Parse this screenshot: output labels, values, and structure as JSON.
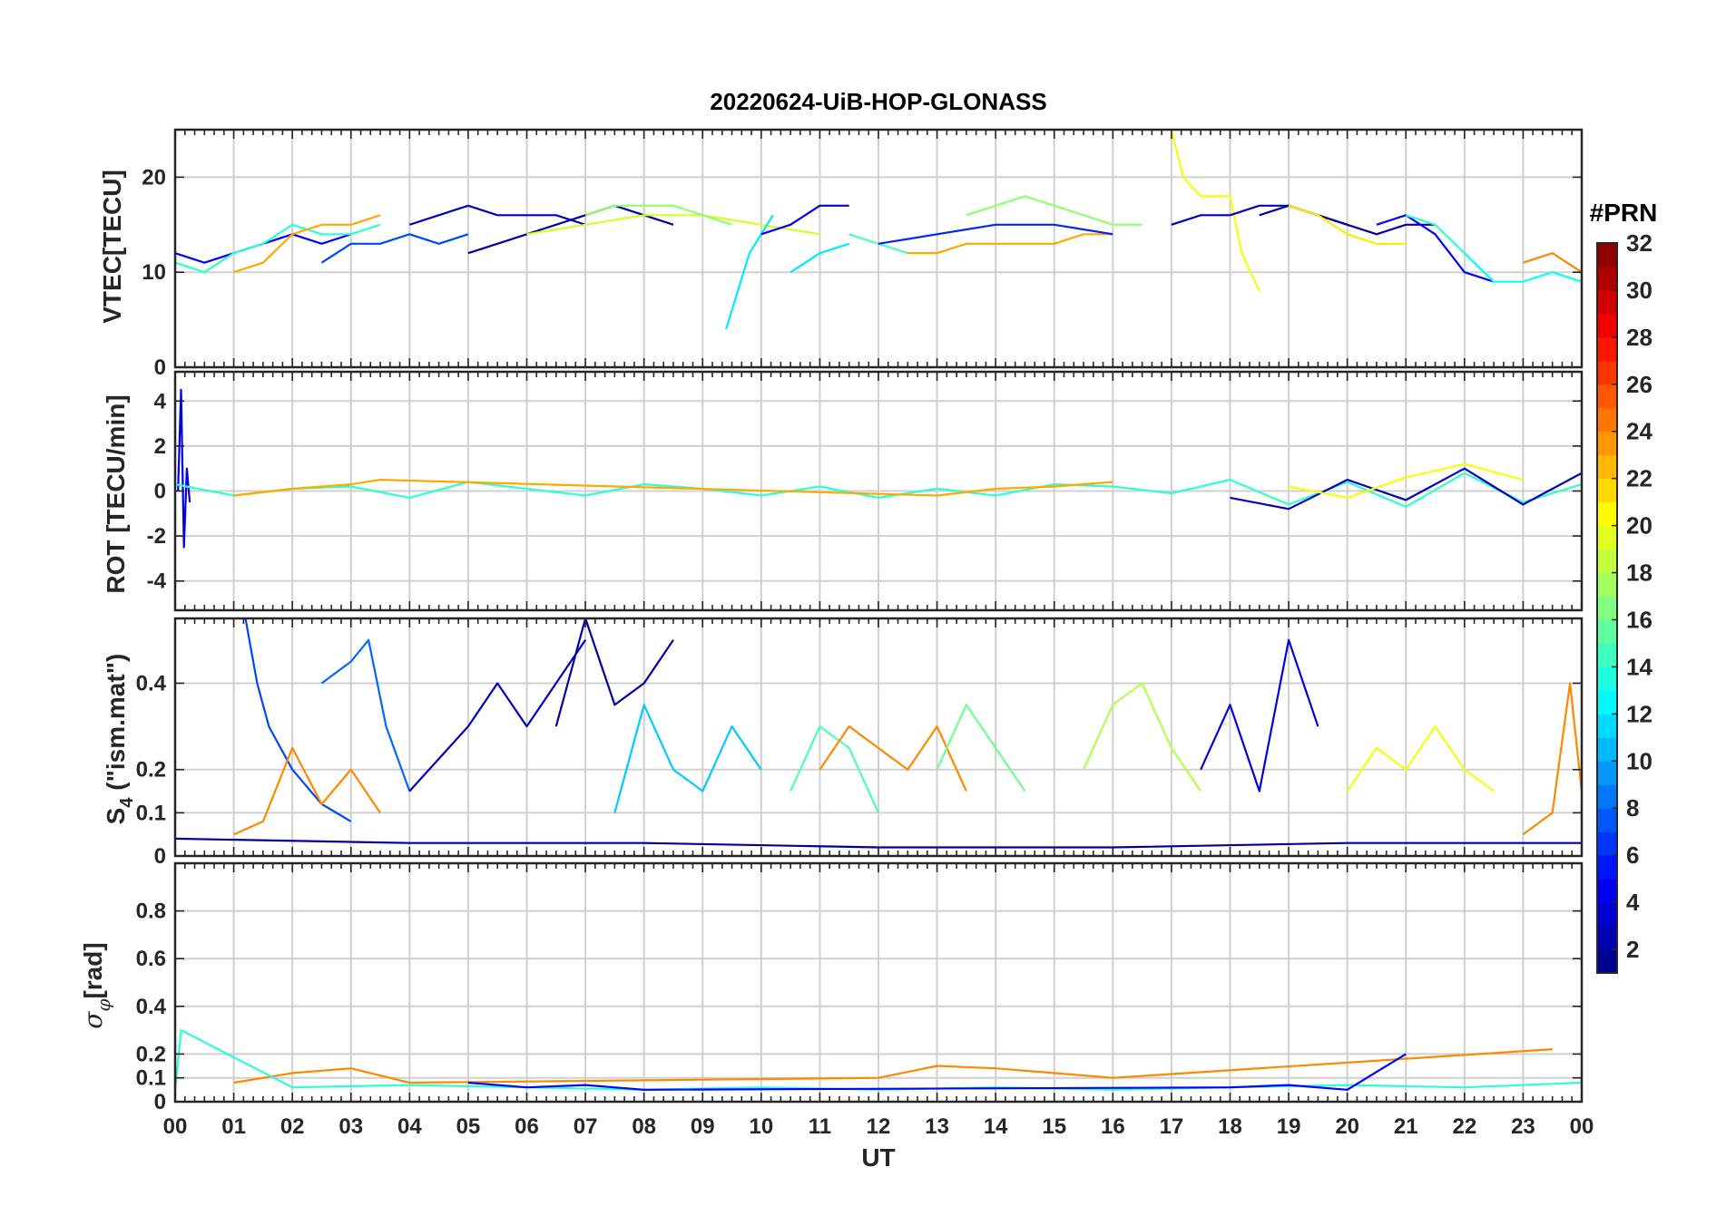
{
  "chart_data": [
    {
      "type": "line",
      "title": "20220624-UiB-HOP-GLONASS",
      "ylabel": "VTEC[TECU]",
      "xlim": [
        0,
        24
      ],
      "ylim": [
        0,
        25
      ],
      "yticks": [
        0,
        10,
        20
      ],
      "grid": true,
      "series_count_note": "",
      "series": [
        {
          "prn": 5,
          "x": [
            0,
            0.5,
            1,
            1.5,
            2,
            2.5,
            3
          ],
          "y": [
            12,
            11,
            12,
            13,
            14,
            13,
            14
          ]
        },
        {
          "prn": 14,
          "x": [
            0,
            0.5,
            1,
            1.5,
            2,
            2.5,
            3,
            3.5
          ],
          "y": [
            11,
            10,
            12,
            13,
            15,
            14,
            14,
            15
          ]
        },
        {
          "prn": 23,
          "x": [
            1,
            1.5,
            2,
            2.5,
            3,
            3.5
          ],
          "y": [
            10,
            11,
            14,
            15,
            15,
            16
          ]
        },
        {
          "prn": 7,
          "x": [
            2.5,
            3,
            3.5,
            4,
            4.5,
            5
          ],
          "y": [
            11,
            13,
            13,
            14,
            13,
            14
          ]
        },
        {
          "prn": 3,
          "x": [
            4,
            4.5,
            5,
            5.5,
            6,
            6.5,
            7
          ],
          "y": [
            15,
            16,
            17,
            16,
            16,
            16,
            15
          ]
        },
        {
          "prn": 2,
          "x": [
            5,
            5.5,
            6,
            6.5,
            7,
            7.5,
            8,
            8.5
          ],
          "y": [
            12,
            13,
            14,
            15,
            16,
            17,
            16,
            15
          ]
        },
        {
          "prn": 19,
          "x": [
            6,
            7,
            8,
            9,
            10,
            11
          ],
          "y": [
            14,
            15,
            16,
            16,
            15,
            14
          ]
        },
        {
          "prn": 17,
          "x": [
            7,
            7.5,
            8,
            8.5,
            9,
            9.5
          ],
          "y": [
            16,
            17,
            17,
            17,
            16,
            15
          ]
        },
        {
          "prn": 12,
          "x": [
            9.4,
            9.6,
            9.8,
            10,
            10.2
          ],
          "y": [
            4,
            8,
            12,
            14,
            16
          ]
        },
        {
          "prn": 12,
          "x": [
            10.5,
            11,
            11.5
          ],
          "y": [
            10,
            12,
            13
          ]
        },
        {
          "prn": 4,
          "x": [
            10,
            10.5,
            11,
            11.5
          ],
          "y": [
            14,
            15,
            17,
            17
          ]
        },
        {
          "prn": 15,
          "x": [
            11.5,
            12,
            12.5,
            13
          ],
          "y": [
            14,
            13,
            12,
            12
          ]
        },
        {
          "prn": 23,
          "x": [
            12.5,
            13,
            13.5,
            14,
            14.5,
            15,
            15.5,
            16
          ],
          "y": [
            12,
            12,
            13,
            13,
            13,
            13,
            14,
            14
          ]
        },
        {
          "prn": 6,
          "x": [
            12,
            13,
            14,
            15,
            16
          ],
          "y": [
            13,
            14,
            15,
            15,
            14
          ]
        },
        {
          "prn": 17,
          "x": [
            13.5,
            14,
            14.5,
            15,
            15.5,
            16,
            16.5
          ],
          "y": [
            16,
            17,
            18,
            17,
            16,
            15,
            15
          ]
        },
        {
          "prn": 20,
          "x": [
            17,
            17.2,
            17.5,
            18,
            18.2,
            18.5
          ],
          "y": [
            25,
            20,
            18,
            18,
            12,
            8
          ]
        },
        {
          "prn": 3,
          "x": [
            17,
            17.5,
            18,
            18.5,
            19,
            19.5,
            20
          ],
          "y": [
            15,
            16,
            16,
            17,
            17,
            16,
            15
          ]
        },
        {
          "prn": 2,
          "x": [
            18.5,
            19,
            19.5,
            20,
            20.5,
            21,
            21.5
          ],
          "y": [
            16,
            17,
            16,
            15,
            14,
            15,
            15
          ]
        },
        {
          "prn": 21,
          "x": [
            19,
            19.5,
            20,
            20.5,
            21
          ],
          "y": [
            17,
            16,
            14,
            13,
            13
          ]
        },
        {
          "prn": 5,
          "x": [
            20.5,
            21,
            21.5,
            22,
            22.5
          ],
          "y": [
            15,
            16,
            14,
            10,
            9
          ]
        },
        {
          "prn": 14,
          "x": [
            21,
            21.5,
            22,
            22.5
          ],
          "y": [
            16,
            15,
            12,
            9
          ]
        },
        {
          "prn": 13,
          "x": [
            22,
            22.5,
            23,
            23.5,
            24
          ],
          "y": [
            12,
            9,
            9,
            10,
            9
          ]
        },
        {
          "prn": 24,
          "x": [
            23,
            23.5,
            24
          ],
          "y": [
            11,
            12,
            10
          ]
        }
      ]
    },
    {
      "type": "line",
      "ylabel": "ROT [TECU/min]",
      "xlim": [
        0,
        24
      ],
      "ylim": [
        -5.3,
        5.3
      ],
      "yticks": [
        -4,
        -2,
        0,
        2,
        4
      ],
      "grid": true,
      "series": [
        {
          "prn": 4,
          "x": [
            0.05,
            0.1,
            0.15,
            0.2,
            0.25
          ],
          "y": [
            0,
            4.5,
            -2.5,
            1,
            -0.5
          ]
        },
        {
          "prn": 14,
          "x": [
            0,
            1,
            2,
            3,
            4,
            5,
            6,
            7,
            8,
            9,
            10,
            11,
            12,
            13,
            14,
            15,
            16,
            17,
            18,
            19,
            20,
            21,
            22,
            23,
            24
          ],
          "y": [
            0.3,
            -0.2,
            0.1,
            0.2,
            -0.3,
            0.4,
            0.1,
            -0.2,
            0.3,
            0.1,
            -0.2,
            0.2,
            -0.3,
            0.1,
            -0.2,
            0.3,
            0.2,
            -0.1,
            0.5,
            -0.6,
            0.4,
            -0.7,
            0.8,
            -0.5,
            0.3
          ]
        },
        {
          "prn": 23,
          "x": [
            1,
            2,
            3,
            3.5,
            13,
            14,
            15,
            16
          ],
          "y": [
            -0.2,
            0.1,
            0.3,
            0.5,
            -0.2,
            0.1,
            0.2,
            0.4
          ]
        },
        {
          "prn": 3,
          "x": [
            18,
            19,
            20,
            21,
            22,
            23,
            24
          ],
          "y": [
            -0.3,
            -0.8,
            0.5,
            -0.4,
            1.0,
            -0.6,
            0.8
          ]
        },
        {
          "prn": 20,
          "x": [
            19,
            20,
            21,
            22,
            23
          ],
          "y": [
            0.2,
            -0.3,
            0.6,
            1.2,
            0.5
          ]
        }
      ]
    },
    {
      "type": "line",
      "ylabel": "S4 (\"ism.mat\")",
      "xlim": [
        0,
        24
      ],
      "ylim": [
        0,
        0.55
      ],
      "yticks": [
        0,
        0.1,
        0.2,
        0.4
      ],
      "grid": true,
      "series": [
        {
          "prn": 7,
          "x": [
            1.2,
            1.4,
            1.6,
            2,
            2.5,
            3
          ],
          "y": [
            0.55,
            0.4,
            0.3,
            0.2,
            0.12,
            0.08
          ]
        },
        {
          "prn": 8,
          "x": [
            2.5,
            3,
            3.3,
            3.6,
            4
          ],
          "y": [
            0.4,
            0.45,
            0.5,
            0.3,
            0.15
          ]
        },
        {
          "prn": 24,
          "x": [
            1,
            1.5,
            2,
            2.5,
            3,
            3.5
          ],
          "y": [
            0.05,
            0.08,
            0.25,
            0.12,
            0.2,
            0.1
          ]
        },
        {
          "prn": 3,
          "x": [
            4,
            5,
            5.5,
            6,
            7
          ],
          "y": [
            0.15,
            0.3,
            0.4,
            0.3,
            0.5
          ]
        },
        {
          "prn": 2,
          "x": [
            6.5,
            7,
            7.5,
            8,
            8.5
          ],
          "y": [
            0.3,
            0.55,
            0.35,
            0.4,
            0.5
          ]
        },
        {
          "prn": 11,
          "x": [
            7.5,
            8,
            8.5,
            9,
            9.5,
            10
          ],
          "y": [
            0.1,
            0.35,
            0.2,
            0.15,
            0.3,
            0.2
          ]
        },
        {
          "prn": 15,
          "x": [
            10.5,
            11,
            11.5,
            12
          ],
          "y": [
            0.15,
            0.3,
            0.25,
            0.1
          ]
        },
        {
          "prn": 24,
          "x": [
            11,
            11.5,
            12.5,
            13,
            13.5
          ],
          "y": [
            0.2,
            0.3,
            0.2,
            0.3,
            0.15
          ]
        },
        {
          "prn": 16,
          "x": [
            13,
            13.5,
            14,
            14.5
          ],
          "y": [
            0.2,
            0.35,
            0.25,
            0.15
          ]
        },
        {
          "prn": 18,
          "x": [
            15.5,
            16,
            16.5,
            17,
            17.5
          ],
          "y": [
            0.2,
            0.35,
            0.4,
            0.25,
            0.15
          ]
        },
        {
          "prn": 4,
          "x": [
            17.5,
            18,
            18.5,
            19,
            19.5
          ],
          "y": [
            0.2,
            0.35,
            0.15,
            0.5,
            0.3
          ]
        },
        {
          "prn": 20,
          "x": [
            20,
            20.5,
            21,
            21.5,
            22,
            22.5
          ],
          "y": [
            0.15,
            0.25,
            0.2,
            0.3,
            0.2,
            0.15
          ]
        },
        {
          "prn": 24,
          "x": [
            23,
            23.5,
            23.8,
            24
          ],
          "y": [
            0.05,
            0.1,
            0.4,
            0.15
          ]
        },
        {
          "prn": 2,
          "x": [
            0,
            4,
            8,
            12,
            16,
            20,
            24
          ],
          "y": [
            0.04,
            0.03,
            0.03,
            0.02,
            0.02,
            0.03,
            0.03
          ]
        }
      ]
    },
    {
      "type": "line",
      "ylabel": "σφ[rad]",
      "xlabel": "UT",
      "xlim": [
        0,
        24
      ],
      "ylim": [
        0,
        1
      ],
      "yticks": [
        0,
        0.1,
        0.2,
        0.4,
        0.6,
        0.8
      ],
      "xticks": [
        "00",
        "01",
        "02",
        "03",
        "04",
        "05",
        "06",
        "07",
        "08",
        "09",
        "10",
        "11",
        "12",
        "13",
        "14",
        "15",
        "16",
        "17",
        "18",
        "19",
        "20",
        "21",
        "22",
        "23",
        "00"
      ],
      "grid": true,
      "series": [
        {
          "prn": 24,
          "x": [
            1,
            2,
            3,
            4,
            12,
            13,
            14,
            15,
            16,
            23.5
          ],
          "y": [
            0.08,
            0.12,
            0.14,
            0.08,
            0.1,
            0.15,
            0.14,
            0.12,
            0.1,
            0.22
          ]
        },
        {
          "prn": 14,
          "x": [
            0,
            0.1,
            2,
            4,
            6,
            8,
            10,
            12,
            14,
            16,
            18,
            20,
            22,
            24
          ],
          "y": [
            0.05,
            0.3,
            0.06,
            0.07,
            0.06,
            0.05,
            0.06,
            0.05,
            0.06,
            0.05,
            0.06,
            0.07,
            0.06,
            0.08
          ]
        },
        {
          "prn": 5,
          "x": [
            5,
            6,
            7,
            8,
            18,
            19,
            20,
            21
          ],
          "y": [
            0.08,
            0.06,
            0.07,
            0.05,
            0.06,
            0.07,
            0.05,
            0.2
          ]
        }
      ]
    }
  ],
  "colorbar": {
    "title": "#PRN",
    "ticks": [
      "2",
      "4",
      "6",
      "8",
      "10",
      "12",
      "14",
      "16",
      "18",
      "20",
      "22",
      "24",
      "26",
      "28",
      "30",
      "32"
    ],
    "range": [
      1,
      32
    ],
    "colormap": "jet"
  },
  "labels": {
    "title": "20220624-UiB-HOP-GLONASS",
    "vtec": "VTEC[TECU]",
    "rot": "ROT [TECU/min]",
    "s4_main": "S",
    "s4_sub": "4",
    "s4_rest": " (\"ism.mat\")",
    "sigma_main": "σ",
    "sigma_sub": "φ",
    "sigma_rest": "[rad]",
    "xlabel": "UT"
  }
}
